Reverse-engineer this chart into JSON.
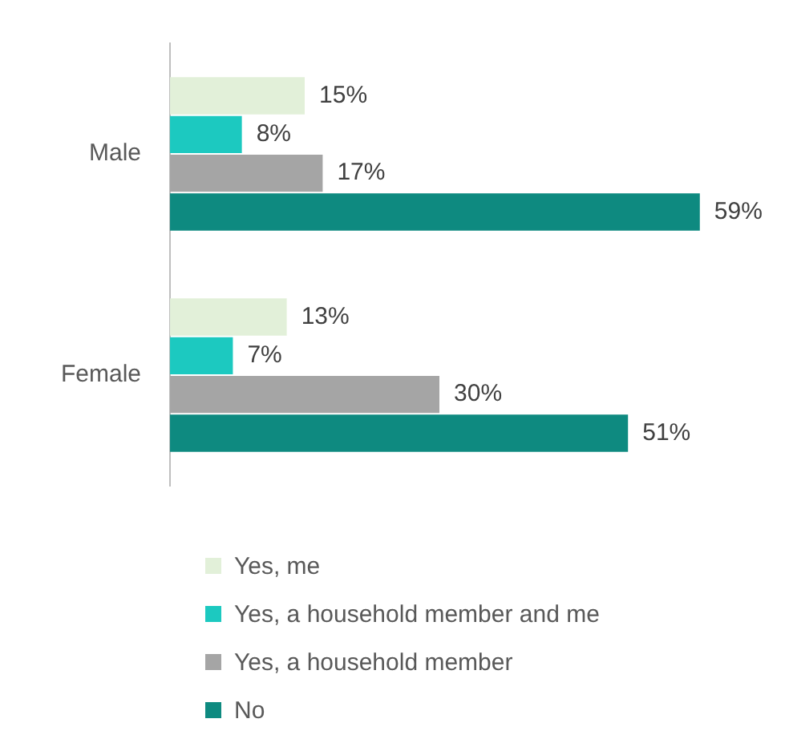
{
  "chart_data": {
    "type": "bar",
    "orientation": "horizontal",
    "categories": [
      "Male",
      "Female"
    ],
    "series": [
      {
        "name": "Yes, me",
        "color": "#e2f0d9",
        "values": [
          15,
          13
        ],
        "value_labels": [
          "15%",
          "13%"
        ]
      },
      {
        "name": "Yes, a household member and me",
        "color": "#1cc9c0",
        "values": [
          8,
          7
        ],
        "value_labels": [
          "8%",
          "7%"
        ]
      },
      {
        "name": "Yes, a household member",
        "color": "#a5a5a5",
        "values": [
          17,
          30
        ],
        "value_labels": [
          "17%",
          "30%"
        ]
      },
      {
        "name": "No",
        "color": "#0e8a80",
        "values": [
          59,
          51
        ],
        "value_labels": [
          "59%",
          "51%"
        ]
      }
    ],
    "legend": "bottom",
    "tick_labels": "y"
  }
}
